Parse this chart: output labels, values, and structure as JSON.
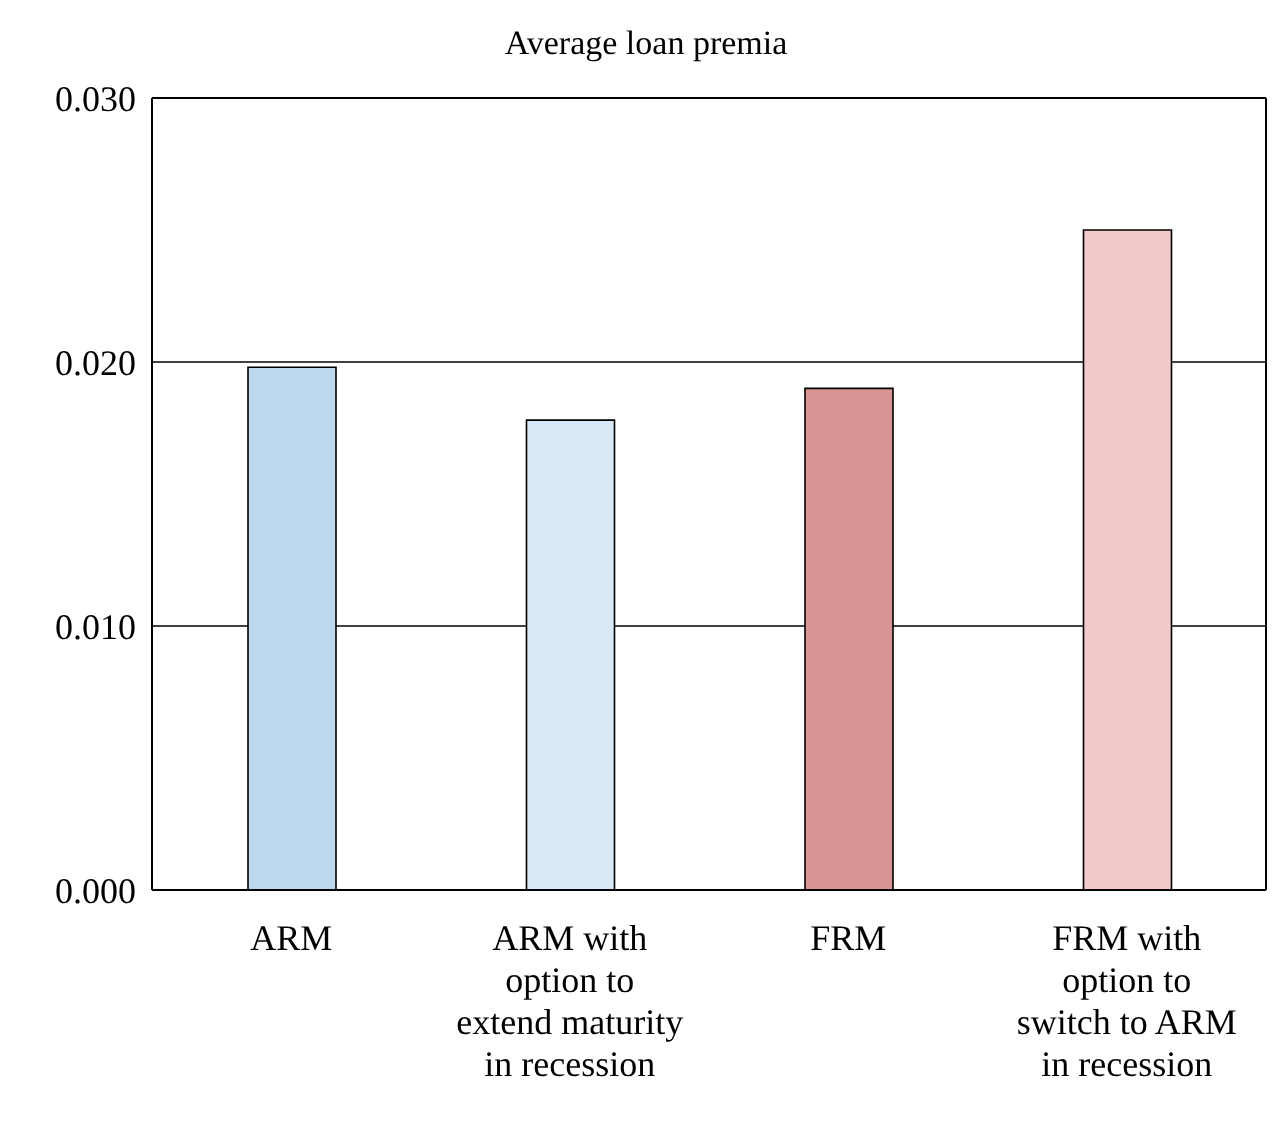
{
  "chart_data": {
    "type": "bar",
    "title": "Average loan premia",
    "categories": [
      "ARM",
      "ARM with option to extend maturity in recession",
      "FRM",
      "FRM with option to switch to ARM in recession"
    ],
    "values": [
      0.0198,
      0.0178,
      0.019,
      0.025
    ],
    "colors": [
      "#bdd7ee",
      "#d9e8f6",
      "#d99594",
      "#f2c9c8"
    ],
    "ylim": [
      0,
      0.03
    ],
    "yticks": [
      {
        "value": 0,
        "label": "0.000"
      },
      {
        "value": 0.01,
        "label": "0.010"
      },
      {
        "value": 0.02,
        "label": "0.020"
      },
      {
        "value": 0.03,
        "label": "0.030"
      }
    ],
    "grid": "y"
  }
}
